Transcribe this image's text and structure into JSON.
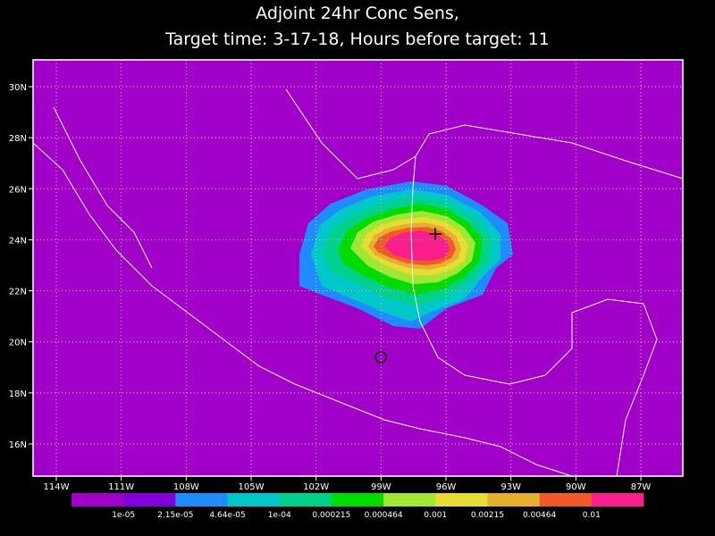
{
  "title": [
    "Adjoint 24hr Conc Sens,",
    "Target time: 3-17-18, Hours before target: 11"
  ],
  "lat_ticks": [
    "30N",
    "28N",
    "26N",
    "24N",
    "22N",
    "20N",
    "18N",
    "16N"
  ],
  "lon_ticks": [
    "114W",
    "111W",
    "108W",
    "105W",
    "102W",
    "99W",
    "96W",
    "93W",
    "90W",
    "87W"
  ],
  "colorbar": {
    "colors": [
      "#a000c8",
      "#8200dc",
      "#1e8cff",
      "#00c8c8",
      "#00d28c",
      "#00dc00",
      "#a0e632",
      "#e6dc32",
      "#e6af2d",
      "#f05a28",
      "#fa1e8c"
    ],
    "labels": [
      "1e-05",
      "2.15e-05",
      "4.64e-05",
      "1e-04",
      "0.000215",
      "0.000464",
      "0.001",
      "0.00215",
      "0.00464",
      "0.01"
    ]
  }
}
